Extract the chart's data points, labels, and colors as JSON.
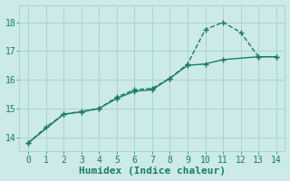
{
  "xlabel": "Humidex (Indice chaleur)",
  "background_color": "#cceae7",
  "line_color": "#1a7a6e",
  "grid_color": "#aad4d0",
  "xlim": [
    -0.5,
    14.5
  ],
  "ylim": [
    13.5,
    18.6
  ],
  "xticks": [
    0,
    1,
    2,
    3,
    4,
    5,
    6,
    7,
    8,
    9,
    10,
    11,
    12,
    13,
    14
  ],
  "yticks": [
    14,
    15,
    16,
    17,
    18
  ],
  "series1_x": [
    0,
    1,
    2,
    3,
    4,
    5,
    6,
    7,
    8,
    9,
    10,
    11,
    12,
    13,
    14
  ],
  "series1_y": [
    13.8,
    14.35,
    14.8,
    14.9,
    15.0,
    15.4,
    15.65,
    15.7,
    16.05,
    16.55,
    17.75,
    18.0,
    17.65,
    16.8,
    16.8
  ],
  "series2_x": [
    0,
    2,
    3,
    4,
    5,
    6,
    7,
    8,
    9,
    10,
    11,
    13,
    14
  ],
  "series2_y": [
    13.8,
    14.8,
    14.88,
    15.0,
    15.35,
    15.6,
    15.65,
    16.05,
    16.5,
    16.55,
    16.7,
    16.8,
    16.8
  ],
  "marker": "+",
  "markersize": 5,
  "linewidth": 1.0,
  "font_color": "#1a7a6e",
  "tick_fontsize": 7,
  "label_fontsize": 8
}
